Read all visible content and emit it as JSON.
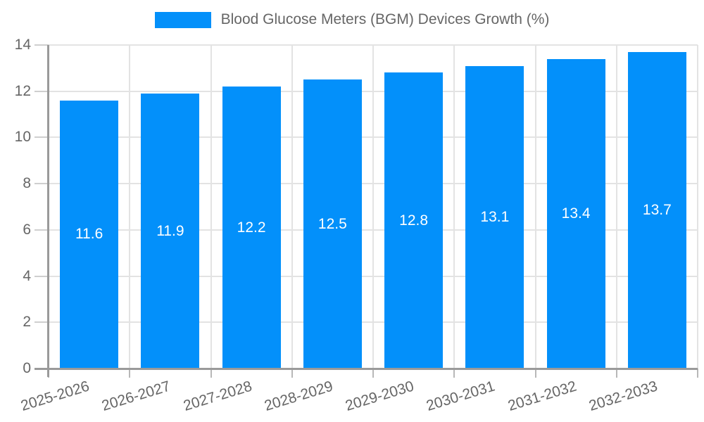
{
  "chart_data": {
    "type": "bar",
    "title": "",
    "legend": {
      "position": "top",
      "label": "Blood Glucose Meters (BGM) Devices Growth (%)"
    },
    "categories": [
      "2025-2026",
      "2026-2027",
      "2027-2028",
      "2028-2029",
      "2029-2030",
      "2030-2031",
      "2031-2032",
      "2032-2033"
    ],
    "values": [
      11.6,
      11.9,
      12.2,
      12.5,
      12.8,
      13.1,
      13.4,
      13.7
    ],
    "data_labels": [
      "11.6",
      "11.9",
      "12.2",
      "12.5",
      "12.8",
      "13.1",
      "13.4",
      "13.7"
    ],
    "xlabel": "",
    "ylabel": "",
    "ylim": [
      0,
      14
    ],
    "yticks": [
      0,
      2,
      4,
      6,
      8,
      10,
      12,
      14
    ],
    "grid": true,
    "colors": {
      "bar": "#0390fa",
      "bar_label_text": "#ffffff",
      "axis_text": "#666666",
      "gridline": "#e3e3e3",
      "axis_line": "#9a9a9a",
      "y_tick_mark": "#cfcfcf",
      "x_tick_mark": "#b8b8b8"
    }
  }
}
